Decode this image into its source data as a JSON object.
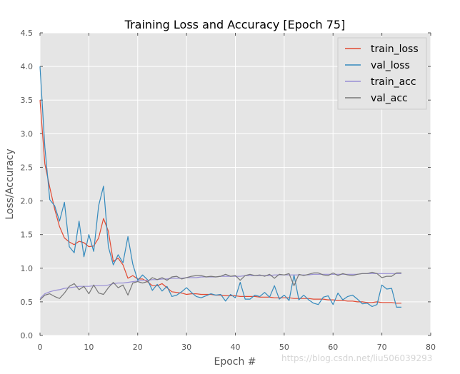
{
  "chart_data": {
    "type": "line",
    "title": "Training Loss and Accuracy [Epoch 75]",
    "xlabel": "Epoch #",
    "ylabel": "Loss/Accuracy",
    "xlim": [
      0,
      80
    ],
    "ylim": [
      0.0,
      4.5
    ],
    "xticks": [
      0,
      10,
      20,
      30,
      40,
      50,
      60,
      70,
      80
    ],
    "yticks": [
      "0.0",
      "0.5",
      "1.0",
      "1.5",
      "2.0",
      "2.5",
      "3.0",
      "3.5",
      "4.0",
      "4.5"
    ],
    "grid": true,
    "legend_position": "top-right",
    "background": "#e5e5e5",
    "series": [
      {
        "name": "train_loss",
        "color": "#e24a33",
        "values": [
          3.5,
          2.55,
          2.2,
          1.88,
          1.62,
          1.45,
          1.39,
          1.35,
          1.4,
          1.38,
          1.32,
          1.33,
          1.45,
          1.74,
          1.55,
          1.1,
          1.15,
          1.05,
          0.85,
          0.89,
          0.84,
          0.84,
          0.8,
          0.74,
          0.74,
          0.77,
          0.71,
          0.65,
          0.64,
          0.63,
          0.61,
          0.62,
          0.62,
          0.61,
          0.61,
          0.61,
          0.6,
          0.6,
          0.59,
          0.59,
          0.59,
          0.58,
          0.58,
          0.58,
          0.58,
          0.57,
          0.57,
          0.57,
          0.56,
          0.56,
          0.56,
          0.56,
          0.55,
          0.55,
          0.55,
          0.55,
          0.54,
          0.54,
          0.54,
          0.53,
          0.53,
          0.52,
          0.52,
          0.51,
          0.51,
          0.5,
          0.5,
          0.49,
          0.49,
          0.5,
          0.49,
          0.49,
          0.49,
          0.48,
          0.48
        ]
      },
      {
        "name": "val_loss",
        "color": "#348abd",
        "values": [
          4.0,
          2.8,
          2.02,
          1.93,
          1.7,
          1.98,
          1.32,
          1.23,
          1.7,
          1.17,
          1.5,
          1.25,
          1.93,
          2.22,
          1.32,
          1.05,
          1.2,
          1.08,
          1.47,
          1.06,
          0.82,
          0.9,
          0.83,
          0.67,
          0.76,
          0.66,
          0.73,
          0.58,
          0.6,
          0.65,
          0.71,
          0.64,
          0.58,
          0.56,
          0.59,
          0.62,
          0.6,
          0.61,
          0.51,
          0.61,
          0.56,
          0.79,
          0.54,
          0.54,
          0.6,
          0.58,
          0.64,
          0.57,
          0.74,
          0.54,
          0.6,
          0.52,
          0.9,
          0.53,
          0.6,
          0.53,
          0.48,
          0.46,
          0.57,
          0.59,
          0.46,
          0.63,
          0.53,
          0.58,
          0.6,
          0.54,
          0.47,
          0.48,
          0.43,
          0.46,
          0.75,
          0.69,
          0.7,
          0.42,
          0.42
        ]
      },
      {
        "name": "train_acc",
        "color": "#988ed5",
        "values": [
          0.55,
          0.62,
          0.65,
          0.67,
          0.68,
          0.7,
          0.71,
          0.72,
          0.73,
          0.73,
          0.73,
          0.74,
          0.74,
          0.74,
          0.75,
          0.77,
          0.78,
          0.78,
          0.79,
          0.8,
          0.81,
          0.82,
          0.82,
          0.83,
          0.83,
          0.84,
          0.84,
          0.85,
          0.85,
          0.85,
          0.86,
          0.86,
          0.86,
          0.87,
          0.87,
          0.87,
          0.87,
          0.88,
          0.88,
          0.88,
          0.88,
          0.88,
          0.89,
          0.89,
          0.89,
          0.89,
          0.89,
          0.89,
          0.9,
          0.9,
          0.9,
          0.9,
          0.9,
          0.9,
          0.9,
          0.9,
          0.91,
          0.91,
          0.91,
          0.91,
          0.91,
          0.91,
          0.91,
          0.91,
          0.91,
          0.91,
          0.92,
          0.92,
          0.92,
          0.92,
          0.92,
          0.92,
          0.92,
          0.92,
          0.92
        ]
      },
      {
        "name": "val_acc",
        "color": "#777777",
        "values": [
          0.53,
          0.6,
          0.62,
          0.58,
          0.55,
          0.63,
          0.73,
          0.77,
          0.68,
          0.73,
          0.62,
          0.75,
          0.63,
          0.61,
          0.71,
          0.79,
          0.71,
          0.75,
          0.6,
          0.78,
          0.8,
          0.78,
          0.8,
          0.86,
          0.83,
          0.86,
          0.82,
          0.87,
          0.88,
          0.84,
          0.86,
          0.88,
          0.89,
          0.89,
          0.87,
          0.88,
          0.87,
          0.88,
          0.91,
          0.88,
          0.89,
          0.82,
          0.89,
          0.91,
          0.89,
          0.9,
          0.88,
          0.91,
          0.85,
          0.91,
          0.9,
          0.92,
          0.74,
          0.91,
          0.89,
          0.91,
          0.93,
          0.93,
          0.9,
          0.89,
          0.93,
          0.89,
          0.92,
          0.9,
          0.89,
          0.91,
          0.92,
          0.92,
          0.94,
          0.92,
          0.86,
          0.88,
          0.88,
          0.93,
          0.93
        ]
      }
    ]
  },
  "watermark": "https://blog.csdn.net/liu506039293"
}
